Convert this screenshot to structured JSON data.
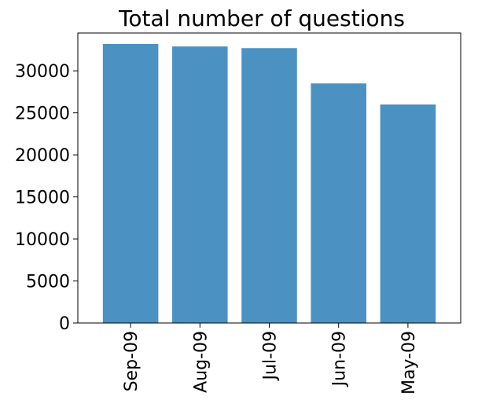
{
  "chart_data": {
    "type": "bar",
    "title": "Total number of questions",
    "xlabel": "",
    "ylabel": "",
    "categories": [
      "Sep-09",
      "Aug-09",
      "Jul-09",
      "Jun-09",
      "May-09"
    ],
    "values": [
      33200,
      32900,
      32700,
      28500,
      26000
    ],
    "ylim": [
      0,
      34500
    ],
    "yticks": [
      0,
      5000,
      10000,
      15000,
      20000,
      25000,
      30000
    ],
    "ytick_labels": [
      "0",
      "5000",
      "10000",
      "15000",
      "20000",
      "25000",
      "30000"
    ],
    "bar_color": "#4b92c3",
    "grid": false,
    "legend": "none"
  }
}
